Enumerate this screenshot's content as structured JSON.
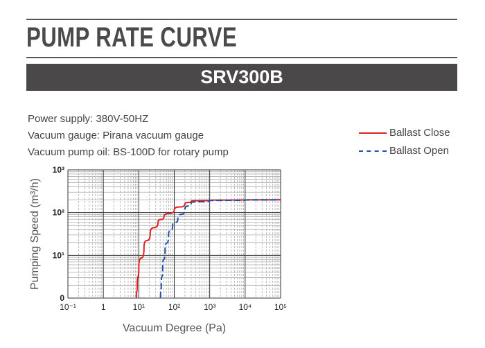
{
  "header": {
    "title": "PUMP RATE CURVE",
    "model": "SRV300B"
  },
  "info": [
    "Power supply: 380V-50HZ",
    "Vacuum gauge: Pirana vacuum gauge",
    "Vacuum pump oil: BS-100D for rotary pump"
  ],
  "chart_data": {
    "type": "line",
    "xlabel": "Vacuum Degree (Pa)",
    "ylabel": "Pumping Speed (m³/h)",
    "xscale": "log",
    "yscale": "log",
    "xlim": [
      0.1,
      100000
    ],
    "ylim": [
      1,
      1000
    ],
    "x_ticks": [
      "10⁻¹",
      "1",
      "10¹",
      "10²",
      "10³",
      "10⁴",
      "10⁵"
    ],
    "y_ticks": [
      "0",
      "10¹",
      "10²",
      "10³"
    ],
    "grid": true,
    "legend": "top-right",
    "series": [
      {
        "name": "Ballast Close",
        "color": "#e02020",
        "style": "solid",
        "x": [
          8.5,
          9,
          10,
          14,
          21,
          35,
          51,
          100,
          200,
          300,
          1000,
          10000,
          100000
        ],
        "y": [
          1,
          2,
          5,
          15,
          33,
          60,
          79,
          115,
          160,
          185,
          195,
          198,
          200
        ]
      },
      {
        "name": "Ballast Open",
        "color": "#1f4fa8",
        "style": "dashed",
        "x": [
          41,
          43,
          47,
          55,
          69,
          90,
          126,
          200,
          300,
          1000,
          10000,
          100000
        ],
        "y": [
          1,
          2,
          5,
          13,
          29,
          50,
          69,
          120,
          170,
          190,
          196,
          200
        ]
      }
    ]
  }
}
